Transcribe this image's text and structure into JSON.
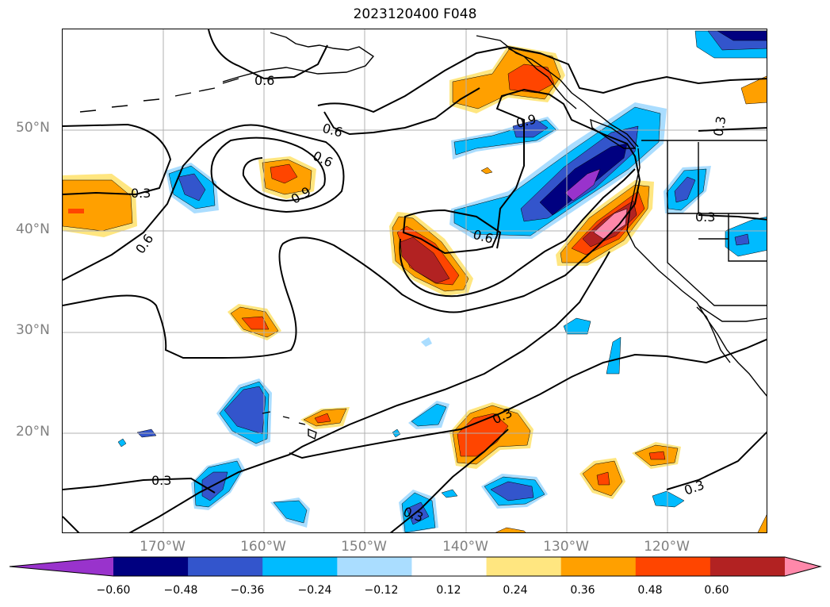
{
  "title": "2023120400 F048",
  "map": {
    "projection": "cylindrical",
    "lon_range": [
      -180,
      -110
    ],
    "lat_range": [
      10,
      60
    ],
    "grid": true,
    "lat_labels": [
      "50°N",
      "40°N",
      "30°N",
      "20°N"
    ],
    "lon_labels": [
      "170°W",
      "160°W",
      "150°W",
      "140°W",
      "130°W",
      "120°W"
    ],
    "contour_labels": [
      "0.6",
      "0.3",
      "0.6",
      "0.6",
      "0.9",
      "0.6",
      "0.9",
      "0.6",
      "0.3",
      "0.3",
      "0.3",
      "0.3",
      "0.3",
      "0.3"
    ]
  },
  "colorbar": {
    "ticks": [
      "−0.60",
      "−0.48",
      "−0.36",
      "−0.24",
      "−0.12",
      "0.12",
      "0.24",
      "0.36",
      "0.48",
      "0.60"
    ],
    "colors": [
      "#9933cc",
      "#000080",
      "#3355cc",
      "#00bbff",
      "#aaddff",
      "#ffffff",
      "#ffe680",
      "#ffa000",
      "#ff4500",
      "#b22222",
      "#ff88aa"
    ]
  }
}
